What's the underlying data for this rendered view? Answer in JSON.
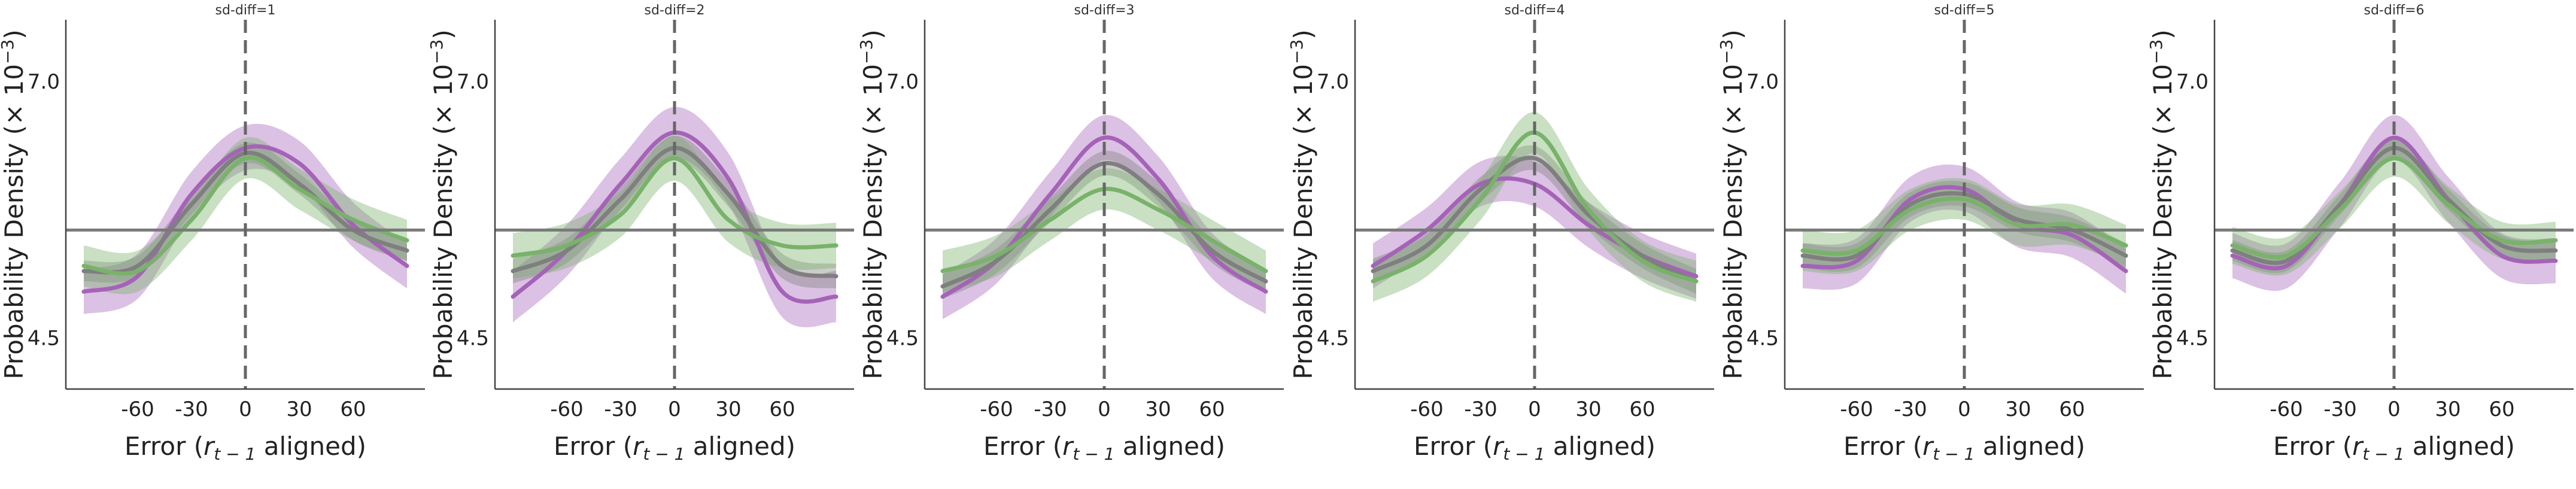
{
  "figure": {
    "xlabel_prefix": "Error (",
    "xlabel_var": "r",
    "xlabel_sub": "t − 1",
    "xlabel_suffix": " aligned)",
    "ylabel_prefix": "Probability Density (× 10",
    "ylabel_sup": "−3",
    "ylabel_suffix": ")",
    "colors": {
      "purple": "#a563b8",
      "gray": "#7f7f7f",
      "green": "#79b26a",
      "reference": "#7a7a7a",
      "vline": "#666666",
      "axis": "#444444"
    }
  },
  "chart_data": [
    {
      "type": "line",
      "title": "sd-diff=1",
      "x": [
        -90,
        -60,
        -30,
        0,
        30,
        60,
        90
      ],
      "xticks": [
        -60,
        -30,
        0,
        30,
        60
      ],
      "yticks": [
        7.0,
        4.5
      ],
      "xlim": [
        -100,
        100
      ],
      "ylim": [
        4.0,
        7.6
      ],
      "reference_y": 5.55,
      "vline_x": 0,
      "series": [
        {
          "color": "purple",
          "values": [
            4.95,
            5.1,
            5.9,
            6.35,
            6.2,
            5.6,
            5.2
          ],
          "band": 0.22
        },
        {
          "color": "gray",
          "values": [
            5.15,
            5.2,
            5.8,
            6.3,
            6.0,
            5.55,
            5.35
          ],
          "band": 0.1
        },
        {
          "color": "green",
          "values": [
            5.2,
            5.15,
            5.65,
            6.25,
            5.95,
            5.65,
            5.45
          ],
          "band": 0.2
        }
      ]
    },
    {
      "type": "line",
      "title": "sd-diff=2",
      "x": [
        -90,
        -60,
        -30,
        0,
        30,
        60,
        90
      ],
      "xticks": [
        -60,
        -30,
        0,
        30,
        60
      ],
      "yticks": [
        7.0,
        4.5
      ],
      "xlim": [
        -100,
        100
      ],
      "ylim": [
        4.0,
        7.6
      ],
      "reference_y": 5.55,
      "vline_x": 0,
      "series": [
        {
          "color": "purple",
          "values": [
            4.9,
            5.35,
            6.0,
            6.5,
            6.05,
            4.95,
            4.9
          ],
          "band": 0.25
        },
        {
          "color": "gray",
          "values": [
            5.15,
            5.35,
            5.85,
            6.35,
            5.9,
            5.2,
            5.1
          ],
          "band": 0.12
        },
        {
          "color": "green",
          "values": [
            5.3,
            5.4,
            5.7,
            6.25,
            5.65,
            5.4,
            5.4
          ],
          "band": 0.22
        }
      ]
    },
    {
      "type": "line",
      "title": "sd-diff=3",
      "x": [
        -90,
        -60,
        -30,
        0,
        30,
        60,
        90
      ],
      "xticks": [
        -60,
        -30,
        0,
        30,
        60
      ],
      "yticks": [
        7.0,
        4.5
      ],
      "xlim": [
        -100,
        100
      ],
      "ylim": [
        4.0,
        7.6
      ],
      "reference_y": 5.55,
      "vline_x": 0,
      "series": [
        {
          "color": "purple",
          "values": [
            4.9,
            5.25,
            5.9,
            6.45,
            6.05,
            5.3,
            4.95
          ],
          "band": 0.22
        },
        {
          "color": "gray",
          "values": [
            5.0,
            5.25,
            5.75,
            6.2,
            5.9,
            5.35,
            5.05
          ],
          "band": 0.12
        },
        {
          "color": "green",
          "values": [
            5.15,
            5.3,
            5.65,
            5.95,
            5.75,
            5.45,
            5.15
          ],
          "band": 0.2
        }
      ]
    },
    {
      "type": "line",
      "title": "sd-diff=4",
      "x": [
        -90,
        -60,
        -30,
        0,
        30,
        60,
        90
      ],
      "xticks": [
        -60,
        -30,
        0,
        30,
        60
      ],
      "yticks": [
        7.0,
        4.5
      ],
      "xlim": [
        -100,
        100
      ],
      "ylim": [
        4.0,
        7.6
      ],
      "reference_y": 5.55,
      "vline_x": 0,
      "series": [
        {
          "color": "purple",
          "values": [
            5.2,
            5.55,
            6.0,
            6.0,
            5.6,
            5.3,
            5.1
          ],
          "band": 0.22
        },
        {
          "color": "gray",
          "values": [
            5.15,
            5.4,
            5.95,
            6.25,
            5.7,
            5.3,
            5.05
          ],
          "band": 0.12
        },
        {
          "color": "green",
          "values": [
            5.05,
            5.3,
            5.85,
            6.5,
            5.75,
            5.25,
            5.05
          ],
          "band": 0.2
        }
      ]
    },
    {
      "type": "line",
      "title": "sd-diff=5",
      "x": [
        -90,
        -60,
        -30,
        0,
        30,
        60,
        90
      ],
      "xticks": [
        -60,
        -30,
        0,
        30,
        60
      ],
      "yticks": [
        7.0,
        4.5
      ],
      "xlim": [
        -100,
        100
      ],
      "ylim": [
        4.0,
        7.6
      ],
      "reference_y": 5.55,
      "vline_x": 0,
      "series": [
        {
          "color": "purple",
          "values": [
            5.2,
            5.25,
            5.85,
            5.95,
            5.6,
            5.5,
            5.15
          ],
          "band": 0.22
        },
        {
          "color": "gray",
          "values": [
            5.3,
            5.3,
            5.8,
            5.9,
            5.65,
            5.55,
            5.3
          ],
          "band": 0.12
        },
        {
          "color": "green",
          "values": [
            5.35,
            5.35,
            5.75,
            5.85,
            5.6,
            5.6,
            5.4
          ],
          "band": 0.2
        }
      ]
    },
    {
      "type": "line",
      "title": "sd-diff=6",
      "x": [
        -90,
        -60,
        -30,
        0,
        30,
        60,
        90
      ],
      "xticks": [
        -60,
        -30,
        0,
        30,
        60
      ],
      "yticks": [
        7.0,
        4.5
      ],
      "xlim": [
        -100,
        100
      ],
      "ylim": [
        4.0,
        7.6
      ],
      "reference_y": 5.55,
      "vline_x": 0,
      "series": [
        {
          "color": "purple",
          "values": [
            5.3,
            5.2,
            5.8,
            6.45,
            5.85,
            5.3,
            5.25
          ],
          "band": 0.22
        },
        {
          "color": "gray",
          "values": [
            5.35,
            5.25,
            5.8,
            6.35,
            5.85,
            5.4,
            5.35
          ],
          "band": 0.1
        },
        {
          "color": "green",
          "values": [
            5.4,
            5.3,
            5.75,
            6.25,
            5.8,
            5.45,
            5.45
          ],
          "band": 0.18
        }
      ]
    }
  ]
}
